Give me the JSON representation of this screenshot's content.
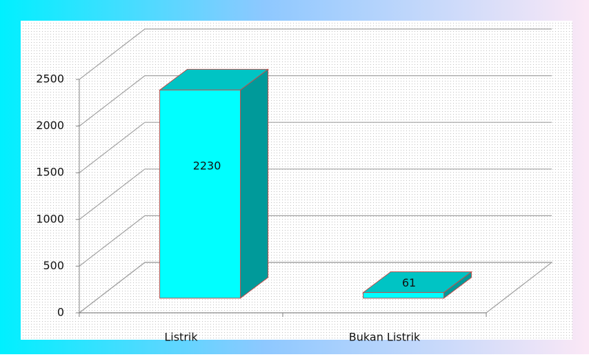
{
  "chart_data": {
    "type": "bar3d",
    "categories": [
      "Listrik",
      "Bukan Listrik"
    ],
    "values": [
      2230,
      61
    ],
    "color": "#00ffff",
    "side_color": "#009a9a",
    "top_color": "#00c4c4",
    "edge_color": "#c0504d",
    "ylim": [
      0,
      2500
    ],
    "yticks": [
      0,
      500,
      1000,
      1500,
      2000,
      2500
    ],
    "grid": true
  }
}
